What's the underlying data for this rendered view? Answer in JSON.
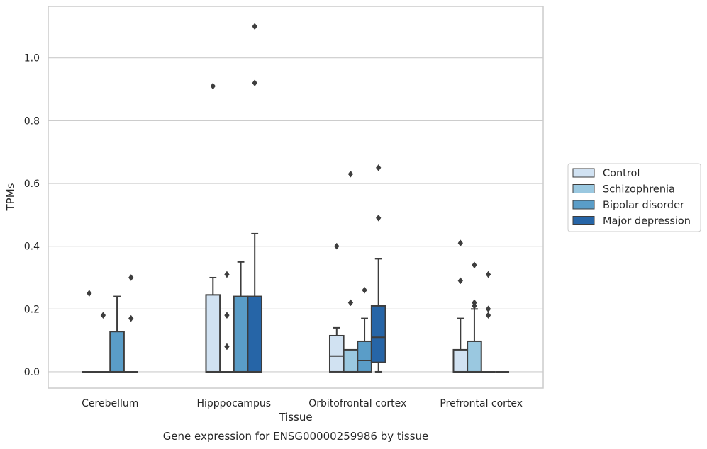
{
  "chart_data": {
    "type": "box",
    "title": "",
    "caption": "Gene expression for ENSG00000259986 by tissue",
    "xlabel": "Tissue",
    "ylabel": "TPMs",
    "ylim": [
      -0.052,
      1.164
    ],
    "yticks": [
      "0.0",
      "0.2",
      "0.4",
      "0.6",
      "0.8",
      "1.0"
    ],
    "grid": "horizontal",
    "legend_position": "right",
    "categories": [
      "Cerebellum",
      "Hipppocampus",
      "Orbitofrontal cortex",
      "Prefrontal cortex"
    ],
    "series": [
      {
        "name": "Control",
        "color": "#d1e2f2",
        "boxes": [
          {
            "q1": 0,
            "median": 0,
            "q3": 0,
            "whisker_low": 0,
            "whisker_high": 0,
            "outliers": [
              0.25
            ]
          },
          {
            "q1": 0,
            "median": 0,
            "q3": 0.245,
            "whisker_low": 0,
            "whisker_high": 0.3,
            "outliers": [
              0.91
            ]
          },
          {
            "q1": 0,
            "median": 0.05,
            "q3": 0.115,
            "whisker_low": 0,
            "whisker_high": 0.14,
            "outliers": [
              0.4
            ]
          },
          {
            "q1": 0,
            "median": 0,
            "q3": 0.07,
            "whisker_low": 0,
            "whisker_high": 0.17,
            "outliers": [
              0.29,
              0.41
            ]
          }
        ]
      },
      {
        "name": "Schizophrenia",
        "color": "#9ac8e0",
        "boxes": [
          {
            "q1": 0,
            "median": 0,
            "q3": 0,
            "whisker_low": 0,
            "whisker_high": 0,
            "outliers": [
              0.18
            ]
          },
          {
            "q1": 0,
            "median": 0,
            "q3": 0,
            "whisker_low": 0,
            "whisker_high": 0,
            "outliers": [
              0.08,
              0.18,
              0.31
            ]
          },
          {
            "q1": 0,
            "median": 0,
            "q3": 0.07,
            "whisker_low": 0,
            "whisker_high": 0.07,
            "outliers": [
              0.22,
              0.63
            ]
          },
          {
            "q1": 0,
            "median": 0,
            "q3": 0.097,
            "whisker_low": 0,
            "whisker_high": 0.2,
            "outliers": [
              0.21,
              0.22,
              0.34
            ]
          }
        ]
      },
      {
        "name": "Bipolar disorder",
        "color": "#5a9dc8",
        "boxes": [
          {
            "q1": 0,
            "median": 0,
            "q3": 0.128,
            "whisker_low": 0,
            "whisker_high": 0.24,
            "outliers": []
          },
          {
            "q1": 0,
            "median": 0,
            "q3": 0.24,
            "whisker_low": 0,
            "whisker_high": 0.35,
            "outliers": []
          },
          {
            "q1": 0,
            "median": 0.036,
            "q3": 0.097,
            "whisker_low": 0,
            "whisker_high": 0.17,
            "outliers": [
              0.26
            ]
          },
          {
            "q1": 0,
            "median": 0,
            "q3": 0,
            "whisker_low": 0,
            "whisker_high": 0,
            "outliers": [
              0.18,
              0.2,
              0.31
            ]
          }
        ]
      },
      {
        "name": "Major depression",
        "color": "#2665a7",
        "boxes": [
          {
            "q1": 0,
            "median": 0,
            "q3": 0,
            "whisker_low": 0,
            "whisker_high": 0,
            "outliers": [
              0.17,
              0.3
            ]
          },
          {
            "q1": 0,
            "median": 0,
            "q3": 0.24,
            "whisker_low": 0,
            "whisker_high": 0.44,
            "outliers": [
              0.92,
              1.1
            ]
          },
          {
            "q1": 0.03,
            "median": 0.11,
            "q3": 0.21,
            "whisker_low": 0,
            "whisker_high": 0.36,
            "outliers": [
              0.49,
              0.65
            ]
          },
          {
            "q1": 0,
            "median": 0,
            "q3": 0,
            "whisker_low": 0,
            "whisker_high": 0,
            "outliers": []
          }
        ]
      }
    ]
  }
}
